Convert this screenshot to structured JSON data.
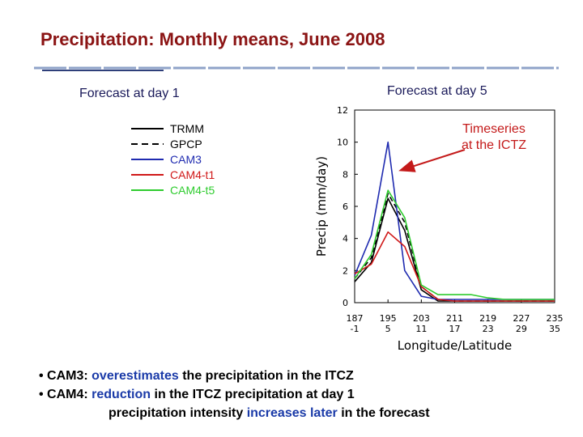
{
  "slide": {
    "title": "Precipitation: Monthly means, June 2008",
    "left_label": "Forecast at day 1",
    "right_label": "Forecast at day 5",
    "annotation_line1": "Timeseries",
    "annotation_line2": "at the ICTZ"
  },
  "legend": [
    {
      "label": "TRMM",
      "color": "#000000",
      "dash": "solid"
    },
    {
      "label": "GPCP",
      "color": "#000000",
      "dash": "dashed"
    },
    {
      "label": "CAM3",
      "color": "#1f2bb0",
      "dash": "solid"
    },
    {
      "label": "CAM4-t1",
      "color": "#d01818",
      "dash": "solid"
    },
    {
      "label": "CAM4-t5",
      "color": "#2ecc2e",
      "dash": "solid"
    }
  ],
  "bullets": {
    "b1_prefix": "• CAM3: ",
    "b1_highlight": "overestimates",
    "b1_rest": " the precipitation in the ITCZ",
    "b2_prefix": "• CAM4: ",
    "b2_highlight": "reduction",
    "b2_rest": " in the ITCZ precipitation at day 1",
    "b3_a": "precipitation intensity ",
    "b3_highlight": "increases later",
    "b3_rest": " in the forecast"
  },
  "chart_data": {
    "type": "line",
    "xlabel": "Longitude/Latitude",
    "ylabel": "Precip (mm/day)",
    "x": [
      187,
      191,
      195,
      199,
      203,
      207,
      211,
      215,
      219,
      223,
      227,
      231,
      235
    ],
    "x_tick_labels_top": [
      "187",
      "195",
      "203",
      "211",
      "219",
      "227",
      "235"
    ],
    "x_tick_labels_bottom": [
      "-1",
      "5",
      "11",
      "17",
      "23",
      "29",
      "35"
    ],
    "x_tick_values": [
      187,
      195,
      203,
      211,
      219,
      227,
      235
    ],
    "y_ticks": [
      0,
      2,
      4,
      6,
      8,
      10,
      12
    ],
    "xlim": [
      187,
      235
    ],
    "ylim": [
      0,
      12
    ],
    "series": [
      {
        "name": "TRMM",
        "color": "#000000",
        "dash": "solid",
        "values": [
          1.3,
          2.5,
          6.5,
          4.5,
          0.8,
          0.1,
          0.1,
          0.1,
          0.1,
          0.1,
          0.1,
          0.1,
          0.1
        ]
      },
      {
        "name": "GPCP",
        "color": "#000000",
        "dash": "dashed",
        "values": [
          1.5,
          2.8,
          6.8,
          5.0,
          1.0,
          0.2,
          0.1,
          0.1,
          0.1,
          0.1,
          0.1,
          0.1,
          0.1
        ]
      },
      {
        "name": "CAM3",
        "color": "#1f2bb0",
        "dash": "solid",
        "values": [
          1.7,
          4.2,
          10.0,
          2.0,
          0.4,
          0.2,
          0.2,
          0.2,
          0.2,
          0.2,
          0.2,
          0.2,
          0.2
        ]
      },
      {
        "name": "CAM4-t1",
        "color": "#d01818",
        "dash": "solid",
        "values": [
          1.8,
          2.4,
          4.4,
          3.5,
          1.0,
          0.2,
          0.1,
          0.1,
          0.1,
          0.1,
          0.1,
          0.1,
          0.1
        ]
      },
      {
        "name": "CAM4-t5",
        "color": "#2ecc2e",
        "dash": "solid",
        "values": [
          1.5,
          3.0,
          7.0,
          5.3,
          1.1,
          0.5,
          0.5,
          0.5,
          0.3,
          0.2,
          0.2,
          0.2,
          0.2
        ]
      }
    ]
  }
}
